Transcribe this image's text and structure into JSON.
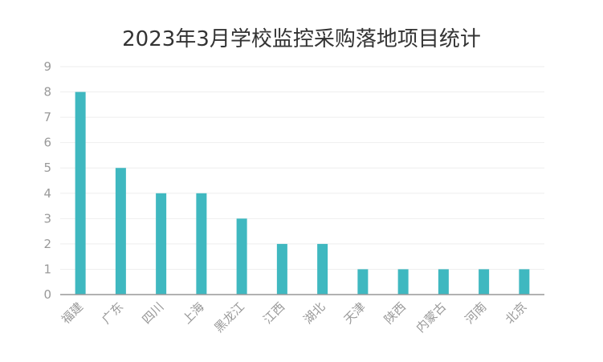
{
  "chart_data": {
    "type": "bar",
    "title": "2023年3月学校监控采购落地项目统计",
    "xlabel": "",
    "ylabel": "",
    "categories": [
      "福建",
      "广东",
      "四川",
      "上海",
      "黑龙江",
      "江西",
      "湖北",
      "天津",
      "陕西",
      "内蒙古",
      "河南",
      "北京"
    ],
    "values": [
      8,
      5,
      4,
      4,
      3,
      2,
      2,
      1,
      1,
      1,
      1,
      1
    ],
    "ylim": [
      0,
      9
    ],
    "yticks": [
      "0",
      "1",
      "2",
      "3",
      "4",
      "5",
      "6",
      "7",
      "8",
      "9"
    ],
    "grid": true,
    "legend": "none",
    "bar_color": "#3fb8c0",
    "grid_color": "#eeeeee",
    "axis_color": "#999999"
  }
}
